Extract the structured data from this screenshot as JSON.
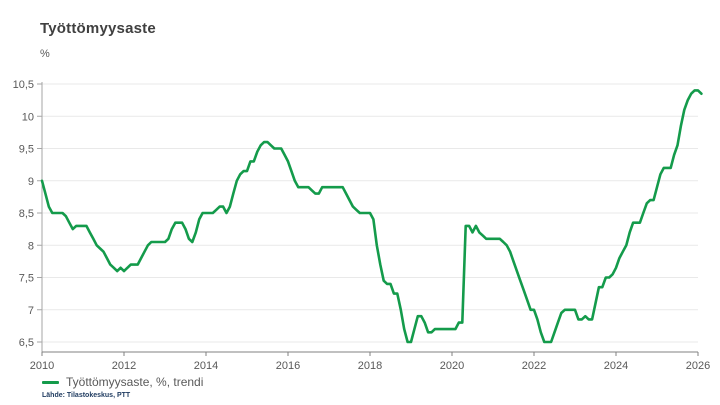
{
  "header": {
    "title": "Työttömyysaste",
    "unit_label": "%"
  },
  "legend": {
    "items": [
      {
        "label": "Työttömyysaste, %, trendi",
        "color": "#149b4b"
      }
    ]
  },
  "footer": {
    "source": "Lähde: Tilastokeskus, PTT"
  },
  "colors": {
    "line": "#149b4b",
    "grid": "#e9e9e9",
    "axis_y": "#a6a6a6",
    "axis_x": "#808080",
    "tick_text": "#595959",
    "title_text": "#404040",
    "source_text": "#1e3a5f",
    "background": "#ffffff"
  },
  "chart_data": {
    "type": "line",
    "title": "Työttömyysaste",
    "ylabel": "%",
    "xlabel": "",
    "grid": "horizontal",
    "legend_position": "bottom-left",
    "xlim": [
      2010,
      2026.2
    ],
    "ylim": [
      6.34,
      10.5
    ],
    "x_tick_years": [
      2010,
      2012,
      2014,
      2016,
      2018,
      2020,
      2022,
      2024,
      2026
    ],
    "x_tick_labels": [
      "2010",
      "2012",
      "2014",
      "2016",
      "2018",
      "2020",
      "2022",
      "2024",
      "2026"
    ],
    "y_tick_values": [
      10.5,
      10,
      9.5,
      9,
      8.5,
      8,
      7.5,
      7,
      6.5
    ],
    "y_tick_labels": [
      "10,5",
      "10",
      "9,5",
      "9",
      "8,5",
      "8",
      "7,5",
      "7",
      "6,5"
    ],
    "series": [
      {
        "name": "Työttömyysaste, %, trendi",
        "color": "#149b4b",
        "start_year": 2010,
        "frequency": "monthly",
        "values": [
          9.0,
          8.8,
          8.6,
          8.5,
          8.5,
          8.5,
          8.5,
          8.45,
          8.35,
          8.25,
          8.3,
          8.3,
          8.3,
          8.3,
          8.2,
          8.1,
          8.0,
          7.95,
          7.9,
          7.8,
          7.7,
          7.65,
          7.6,
          7.65,
          7.6,
          7.65,
          7.7,
          7.7,
          7.7,
          7.8,
          7.9,
          8.0,
          8.05,
          8.05,
          8.05,
          8.05,
          8.05,
          8.1,
          8.25,
          8.35,
          8.35,
          8.35,
          8.25,
          8.1,
          8.05,
          8.2,
          8.4,
          8.5,
          8.5,
          8.5,
          8.5,
          8.55,
          8.6,
          8.6,
          8.5,
          8.6,
          8.8,
          9.0,
          9.1,
          9.15,
          9.15,
          9.3,
          9.3,
          9.45,
          9.55,
          9.6,
          9.6,
          9.55,
          9.5,
          9.5,
          9.5,
          9.4,
          9.3,
          9.15,
          9.0,
          8.9,
          8.9,
          8.9,
          8.9,
          8.85,
          8.8,
          8.8,
          8.9,
          8.9,
          8.9,
          8.9,
          8.9,
          8.9,
          8.9,
          8.8,
          8.7,
          8.6,
          8.55,
          8.5,
          8.5,
          8.5,
          8.5,
          8.4,
          8.0,
          7.7,
          7.45,
          7.4,
          7.4,
          7.25,
          7.25,
          7.0,
          6.7,
          6.5,
          6.5,
          6.7,
          6.9,
          6.9,
          6.8,
          6.65,
          6.65,
          6.7,
          6.7,
          6.7,
          6.7,
          6.7,
          6.7,
          6.7,
          6.8,
          6.8,
          8.3,
          8.3,
          8.2,
          8.3,
          8.2,
          8.15,
          8.1,
          8.1,
          8.1,
          8.1,
          8.1,
          8.05,
          8.0,
          7.9,
          7.75,
          7.6,
          7.45,
          7.3,
          7.15,
          7.0,
          7.0,
          6.85,
          6.65,
          6.5,
          6.5,
          6.5,
          6.65,
          6.8,
          6.95,
          7.0,
          7.0,
          7.0,
          7.0,
          6.85,
          6.85,
          6.9,
          6.85,
          6.85,
          7.1,
          7.35,
          7.35,
          7.5,
          7.5,
          7.55,
          7.65,
          7.8,
          7.9,
          8.0,
          8.2,
          8.35,
          8.35,
          8.35,
          8.5,
          8.65,
          8.7,
          8.7,
          8.9,
          9.1,
          9.2,
          9.2,
          9.2,
          9.4,
          9.55,
          9.85,
          10.1,
          10.25,
          10.35,
          10.4,
          10.4,
          10.35
        ]
      }
    ]
  }
}
